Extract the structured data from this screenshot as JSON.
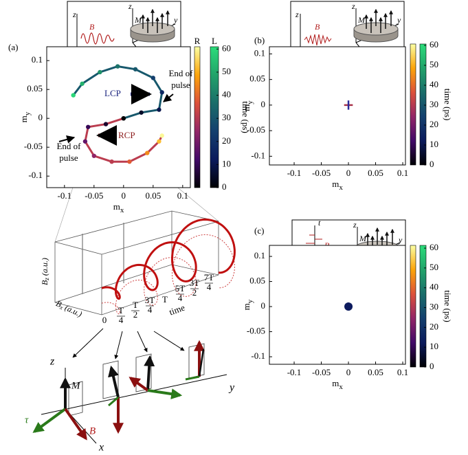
{
  "chart_data": [
    {
      "type": "line",
      "panel": "(a)",
      "x_label": {
        "main": "m",
        "sub": "x"
      },
      "y_label": {
        "main": "m",
        "sub": "y"
      },
      "xlim": [
        -0.13,
        0.113
      ],
      "ylim": [
        -0.12,
        0.124
      ],
      "xticks": [
        -0.1,
        -0.05,
        0,
        0.05,
        0.1
      ],
      "yticks": [
        0.1,
        0.05,
        0,
        -0.05,
        -0.1
      ],
      "colorbar": {
        "label": "time (ps)",
        "lim": [
          0,
          61
        ],
        "ticks": [
          0,
          10,
          20,
          30,
          40,
          50,
          60
        ],
        "bars": [
          {
            "name": "R",
            "colors": [
              "#000004",
              "#420a68",
              "#932667",
              "#dd513a",
              "#fca50a",
              "#fcffa4"
            ]
          },
          {
            "name": "L",
            "colors": [
              "#000004",
              "#0b1a5c",
              "#14406e",
              "#1a6d6a",
              "#22a36a",
              "#2bdc7a"
            ]
          }
        ]
      },
      "series": [
        {
          "time": [
            0,
            5,
            10,
            17,
            24,
            31,
            38,
            45,
            52,
            60
          ],
          "x": [
            0.0,
            -0.03,
            -0.06,
            -0.065,
            -0.05,
            -0.02,
            0.01,
            0.04,
            0.06,
            0.065
          ],
          "y": [
            0.0,
            -0.01,
            -0.015,
            -0.04,
            -0.065,
            -0.075,
            -0.075,
            -0.06,
            -0.04,
            -0.03
          ]
        },
        {
          "time": [
            0,
            5,
            10,
            17,
            24,
            31,
            38,
            45,
            52,
            60
          ],
          "x": [
            0.0,
            0.03,
            0.06,
            0.065,
            0.05,
            0.02,
            -0.01,
            -0.04,
            -0.07,
            -0.085
          ],
          "y": [
            0.0,
            0.01,
            0.015,
            0.045,
            0.07,
            0.085,
            0.09,
            0.08,
            0.06,
            0.04
          ]
        }
      ],
      "annotations": [
        {
          "lines": [
            "LCP"
          ],
          "color": "#1a237e"
        },
        {
          "lines": [
            "RCP"
          ],
          "color": "#8b1a1a"
        },
        {
          "lines": [
            "End of",
            "pulse"
          ],
          "color": "#000000"
        },
        {
          "lines": [
            "End of",
            "pulse"
          ],
          "color": "#000000"
        }
      ],
      "inset_labels": [
        "z",
        "B⃗",
        "t",
        "x",
        "z",
        "M⃗",
        "y",
        "x"
      ],
      "zoom": {
        "y_label": {
          "main": "B",
          "sub": "z",
          "unit": "(a.u.)"
        },
        "x_label": {
          "main": "B",
          "sub": "x",
          "unit": "(a.u.)"
        },
        "time_label": "time",
        "time_ticks": [
          "0",
          {
            "num": "T",
            "den": "4"
          },
          {
            "num": "T",
            "den": "2"
          },
          {
            "num": "3T",
            "den": "4"
          },
          "T",
          {
            "num": "5T",
            "den": "4"
          },
          {
            "num": "3T",
            "den": "2"
          },
          {
            "num": "7T",
            "den": "4"
          }
        ]
      },
      "vectors": {
        "z": "z",
        "M": "M⃗",
        "y": "y",
        "tau": "τ⃗",
        "B": "B⃗",
        "x": "x"
      }
    },
    {
      "type": "line",
      "panel": "(b)",
      "x_label": {
        "main": "m",
        "sub": "x"
      },
      "y_label": {
        "main": "m",
        "sub": "y"
      },
      "xlim": [
        -0.1456,
        0.105
      ],
      "ylim": [
        -0.117,
        0.114
      ],
      "xticks": [
        -0.1,
        -0.05,
        0,
        0.05,
        0.1
      ],
      "yticks": [
        0.1,
        0.05,
        0,
        -0.05,
        -0.1
      ],
      "colorbar": {
        "label": "time (ps)",
        "lim": [
          0,
          60.7
        ],
        "ticks": [
          0,
          10,
          20,
          30,
          40,
          50,
          60
        ],
        "bars": [
          {
            "colors": [
              "#000004",
              "#420a68",
              "#932667",
              "#dd513a",
              "#fca50a",
              "#fcffa4"
            ]
          },
          {
            "colors": [
              "#000004",
              "#0b1a5c",
              "#14406e",
              "#1a6d6a",
              "#22a36a",
              "#2bdc7a"
            ]
          }
        ]
      },
      "series": [
        {
          "color": "#a8324a",
          "x": [
            -0.008,
            0.008
          ],
          "y": [
            0,
            0
          ]
        },
        {
          "color": "#2a2a9a",
          "x": [
            0,
            0
          ],
          "y": [
            -0.009,
            0.009
          ]
        }
      ],
      "inset_labels": [
        "z",
        "B⃗",
        "t",
        "x",
        "z",
        "M⃗",
        "y",
        "x"
      ]
    },
    {
      "type": "scatter",
      "panel": "(c)",
      "x_label": {
        "main": "m",
        "sub": "x"
      },
      "y_label": {
        "main": "m",
        "sub": "y"
      },
      "xlim": [
        -0.1456,
        0.105
      ],
      "ylim": [
        -0.115,
        0.122
      ],
      "xticks": [
        -0.1,
        -0.05,
        0,
        0.05,
        0.1
      ],
      "yticks": [
        0.1,
        0.05,
        0,
        -0.05,
        -0.1
      ],
      "colorbar": {
        "label": "time (ps)",
        "lim": [
          0,
          61.4
        ],
        "ticks": [
          0,
          10,
          20,
          30,
          40,
          50,
          60
        ],
        "bars": [
          {
            "colors": [
              "#000004",
              "#420a68",
              "#932667",
              "#dd513a",
              "#fca50a",
              "#fcffa4"
            ]
          },
          {
            "colors": [
              "#000004",
              "#0b1a5c",
              "#14406e",
              "#1a6d6a",
              "#22a36a",
              "#2bdc7a"
            ]
          }
        ]
      },
      "series": [
        {
          "color": "#0d1b5e",
          "x": [
            0
          ],
          "y": [
            0
          ]
        }
      ],
      "inset_labels": [
        "t",
        "B⃗",
        "y",
        "x",
        "z",
        "M⃗",
        "y",
        "x"
      ]
    }
  ]
}
